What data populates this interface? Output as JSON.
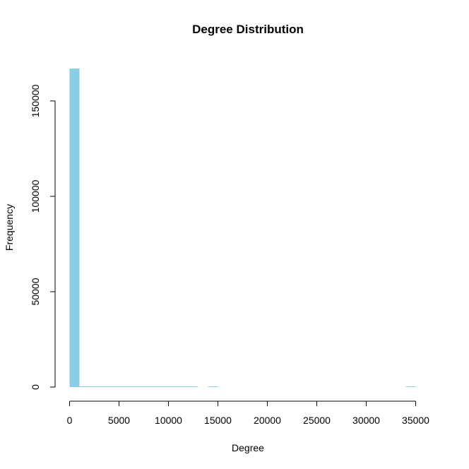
{
  "chart_data": {
    "type": "bar",
    "title": "Degree Distribution",
    "xlabel": "Degree",
    "ylabel": "Frequency",
    "bar_color": "#87CEEB",
    "bin_edges": [
      0,
      1000,
      2000,
      3000,
      4000,
      5000,
      6000,
      7000,
      8000,
      9000,
      10000,
      11000,
      12000,
      13000,
      14000,
      15000,
      16000,
      17000,
      18000,
      19000,
      20000,
      21000,
      22000,
      23000,
      24000,
      25000,
      26000,
      27000,
      28000,
      29000,
      30000,
      31000,
      32000,
      33000,
      34000,
      35000
    ],
    "values": [
      167000,
      400,
      80,
      30,
      15,
      8,
      5,
      3,
      2,
      2,
      1,
      1,
      1,
      0,
      1,
      0,
      0,
      0,
      0,
      0,
      0,
      0,
      0,
      0,
      0,
      0,
      0,
      0,
      0,
      0,
      0,
      0,
      0,
      0,
      1
    ],
    "xlim": [
      0,
      35000
    ],
    "ylim": [
      0,
      167000
    ],
    "x_ticks": [
      0,
      5000,
      10000,
      15000,
      20000,
      25000,
      30000,
      35000
    ],
    "x_tick_labels": [
      "0",
      "5000",
      "10000",
      "15000",
      "20000",
      "25000",
      "30000",
      "35000"
    ],
    "y_ticks": [
      0,
      50000,
      100000,
      150000
    ],
    "y_tick_labels": [
      "0",
      "50000",
      "100000",
      "150000"
    ],
    "grid": false
  }
}
